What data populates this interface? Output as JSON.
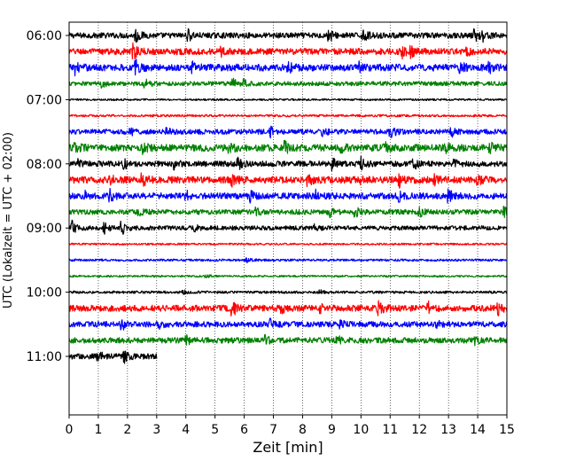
{
  "chart_data": {
    "type": "line",
    "chart_kind": "helicorder seismogram",
    "xlabel": "Zeit  [min]",
    "ylabel": "UTC (Lokalzeit = UTC + 02:00)",
    "xlim": [
      0,
      15
    ],
    "x_ticks": [
      "0",
      "1",
      "2",
      "3",
      "4",
      "5",
      "6",
      "7",
      "8",
      "9",
      "10",
      "11",
      "12",
      "13",
      "14",
      "15"
    ],
    "vertical_grid": "dotted",
    "y_tick_labels": [
      {
        "label": "06:00",
        "row": 0
      },
      {
        "label": "07:00",
        "row": 4
      },
      {
        "label": "08:00",
        "row": 8
      },
      {
        "label": "09:00",
        "row": 12
      },
      {
        "label": "10:00",
        "row": 16
      },
      {
        "label": "11:00",
        "row": 20
      }
    ],
    "rows_total": 24,
    "color_cycle": [
      "#000000",
      "#ff0000",
      "#0000ff",
      "#008000"
    ],
    "traces": [
      {
        "row": 0,
        "start": "06:00",
        "color": "#000000",
        "x_end": 15,
        "amp": 0.45,
        "bursts": [
          [
            2.3,
            1.0
          ],
          [
            4.1,
            0.8
          ],
          [
            8.9,
            0.9
          ],
          [
            10.1,
            0.8
          ],
          [
            13.9,
            1.0
          ],
          [
            14.2,
            0.9
          ]
        ]
      },
      {
        "row": 1,
        "start": "06:15",
        "color": "#ff0000",
        "x_end": 15,
        "amp": 0.5,
        "bursts": [
          [
            2.2,
            1.2
          ],
          [
            5.2,
            0.7
          ],
          [
            11.4,
            0.9
          ],
          [
            11.7,
            0.7
          ],
          [
            13.6,
            0.6
          ]
        ]
      },
      {
        "row": 2,
        "start": "06:30",
        "color": "#0000ff",
        "x_end": 15,
        "amp": 0.55,
        "bursts": [
          [
            0.2,
            0.8
          ],
          [
            2.3,
            1.0
          ],
          [
            4.2,
            0.9
          ],
          [
            7.5,
            0.8
          ],
          [
            9.9,
            0.7
          ],
          [
            13.4,
            0.7
          ],
          [
            14.4,
            0.6
          ]
        ]
      },
      {
        "row": 3,
        "start": "06:45",
        "color": "#008000",
        "x_end": 15,
        "amp": 0.35,
        "bursts": [
          [
            1.1,
            0.6
          ],
          [
            2.6,
            0.7
          ],
          [
            5.6,
            0.7
          ],
          [
            6.0,
            0.6
          ]
        ]
      },
      {
        "row": 4,
        "start": "07:00",
        "color": "#000000",
        "x_end": 15,
        "amp": 0.15,
        "bursts": []
      },
      {
        "row": 5,
        "start": "07:15",
        "color": "#ff0000",
        "x_end": 15,
        "amp": 0.18,
        "bursts": []
      },
      {
        "row": 6,
        "start": "07:30",
        "color": "#0000ff",
        "x_end": 15,
        "amp": 0.4,
        "bursts": [
          [
            2.1,
            0.5
          ],
          [
            3.3,
            0.7
          ],
          [
            6.9,
            0.7
          ],
          [
            8.7,
            0.6
          ],
          [
            11.0,
            1.0
          ],
          [
            13.1,
            0.7
          ]
        ]
      },
      {
        "row": 7,
        "start": "07:45",
        "color": "#008000",
        "x_end": 15,
        "amp": 0.55,
        "bursts": [
          [
            0.2,
            0.7
          ],
          [
            2.5,
            0.8
          ],
          [
            5.5,
            0.9
          ],
          [
            7.4,
            0.9
          ],
          [
            9.3,
            0.6
          ],
          [
            10.8,
            0.7
          ],
          [
            12.9,
            0.8
          ],
          [
            14.4,
            0.7
          ]
        ]
      },
      {
        "row": 8,
        "start": "08:00",
        "color": "#000000",
        "x_end": 15,
        "amp": 0.45,
        "bursts": [
          [
            0.3,
            0.7
          ],
          [
            1.9,
            0.7
          ],
          [
            3.6,
            0.7
          ],
          [
            5.8,
            0.8
          ],
          [
            9.0,
            0.8
          ],
          [
            10.0,
            1.0
          ],
          [
            11.8,
            0.8
          ],
          [
            13.2,
            0.6
          ]
        ]
      },
      {
        "row": 9,
        "start": "08:15",
        "color": "#ff0000",
        "x_end": 15,
        "amp": 0.55,
        "bursts": [
          [
            1.4,
            0.8
          ],
          [
            2.5,
            0.9
          ],
          [
            5.6,
            0.8
          ],
          [
            8.2,
            0.9
          ],
          [
            10.0,
            1.0
          ],
          [
            11.3,
            1.0
          ],
          [
            12.5,
            0.7
          ],
          [
            14.0,
            0.7
          ]
        ]
      },
      {
        "row": 10,
        "start": "08:30",
        "color": "#0000ff",
        "x_end": 15,
        "amp": 0.5,
        "bursts": [
          [
            0.5,
            0.7
          ],
          [
            1.4,
            0.8
          ],
          [
            4.0,
            0.7
          ],
          [
            6.2,
            0.7
          ],
          [
            8.4,
            1.0
          ],
          [
            11.3,
            0.7
          ],
          [
            13.0,
            0.9
          ]
        ]
      },
      {
        "row": 11,
        "start": "08:45",
        "color": "#008000",
        "x_end": 15,
        "amp": 0.4,
        "bursts": [
          [
            2.4,
            0.6
          ],
          [
            6.4,
            0.7
          ],
          [
            8.9,
            0.8
          ],
          [
            9.8,
            0.9
          ],
          [
            12.0,
            0.7
          ],
          [
            14.9,
            0.6
          ]
        ]
      },
      {
        "row": 12,
        "start": "09:00",
        "color": "#000000",
        "x_end": 15,
        "amp": 0.35,
        "bursts": [
          [
            0.1,
            1.0
          ],
          [
            1.2,
            0.8
          ],
          [
            1.8,
            1.0
          ],
          [
            4.3,
            0.4
          ],
          [
            8.4,
            0.4
          ]
        ]
      },
      {
        "row": 13,
        "start": "09:15",
        "color": "#ff0000",
        "x_end": 15,
        "amp": 0.15,
        "bursts": []
      },
      {
        "row": 14,
        "start": "09:30",
        "color": "#0000ff",
        "x_end": 15,
        "amp": 0.18,
        "bursts": [
          [
            6.1,
            0.3
          ]
        ]
      },
      {
        "row": 15,
        "start": "09:45",
        "color": "#008000",
        "x_end": 15,
        "amp": 0.15,
        "bursts": [
          [
            4.7,
            0.3
          ]
        ]
      },
      {
        "row": 16,
        "start": "10:00",
        "color": "#000000",
        "x_end": 15,
        "amp": 0.2,
        "bursts": [
          [
            3.9,
            0.3
          ],
          [
            8.6,
            0.3
          ]
        ]
      },
      {
        "row": 17,
        "start": "10:15",
        "color": "#ff0000",
        "x_end": 15,
        "amp": 0.5,
        "bursts": [
          [
            5.6,
            1.2
          ],
          [
            7.3,
            0.7
          ],
          [
            8.6,
            0.9
          ],
          [
            10.6,
            1.0
          ],
          [
            12.3,
            1.0
          ],
          [
            14.7,
            0.9
          ]
        ]
      },
      {
        "row": 18,
        "start": "10:30",
        "color": "#0000ff",
        "x_end": 15,
        "amp": 0.45,
        "bursts": [
          [
            1.8,
            0.9
          ],
          [
            3.1,
            0.6
          ],
          [
            6.9,
            0.7
          ],
          [
            9.3,
            0.6
          ],
          [
            12.6,
            0.6
          ]
        ]
      },
      {
        "row": 19,
        "start": "10:45",
        "color": "#008000",
        "x_end": 15,
        "amp": 0.45,
        "bursts": [
          [
            4.0,
            0.7
          ],
          [
            6.7,
            0.7
          ],
          [
            9.2,
            0.6
          ],
          [
            13.9,
            0.7
          ]
        ]
      },
      {
        "row": 20,
        "start": "11:00",
        "color": "#000000",
        "x_end": 3,
        "amp": 0.45,
        "bursts": [
          [
            1.0,
            0.8
          ],
          [
            1.9,
            0.7
          ]
        ]
      }
    ]
  }
}
